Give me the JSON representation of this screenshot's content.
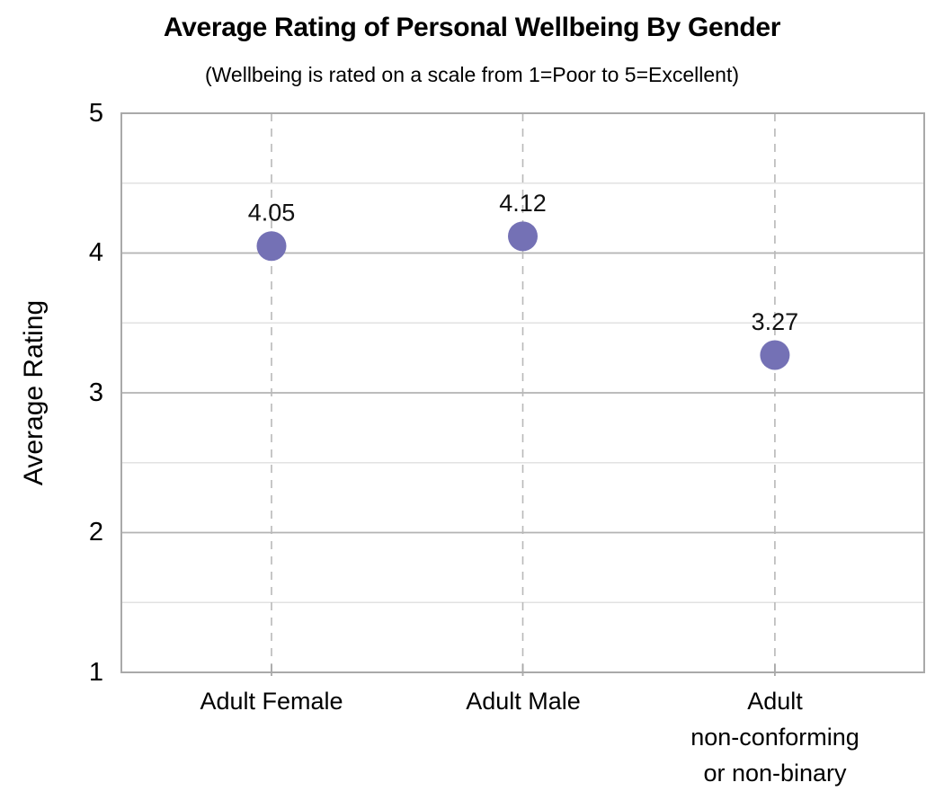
{
  "title": "Average Rating of Personal Wellbeing By Gender",
  "subtitle": "(Wellbeing is rated on a scale from 1=Poor to 5=Excellent)",
  "y_axis": {
    "title": "Average Rating",
    "tick_labels": [
      "5",
      "4",
      "3",
      "2",
      "1"
    ]
  },
  "chart_data": {
    "type": "scatter",
    "title": "Average Rating of Personal Wellbeing By Gender",
    "subtitle": "(Wellbeing is rated on a scale from 1=Poor to 5=Excellent)",
    "xlabel": "",
    "ylabel": "Average Rating",
    "ylim": [
      1,
      5
    ],
    "y_major_ticks": [
      1,
      2,
      3,
      4,
      5
    ],
    "y_minor_gridlines": [
      1.5,
      2.5,
      3.5,
      4.5
    ],
    "y_major_gridlines": [
      2,
      3,
      4
    ],
    "grid_on": true,
    "legend_position": "none",
    "categories": [
      "Adult Female",
      "Adult Male",
      "Adult non-conforming or non-binary"
    ],
    "category_display_lines": [
      [
        "Adult Female"
      ],
      [
        "Adult Male"
      ],
      [
        "Adult",
        "non-conforming",
        "or non-binary"
      ]
    ],
    "values": [
      4.05,
      4.12,
      3.27
    ],
    "point_labels": [
      "4.05",
      "4.12",
      "3.27"
    ]
  },
  "colors": {
    "marker": "#7471B5",
    "major_gridline": "#b3b3b3",
    "minor_gridline": "#e2e2e2",
    "dashed_gridline": "#b8b8b8",
    "plot_border": "#a9a9a9",
    "label_text": "#111111"
  }
}
